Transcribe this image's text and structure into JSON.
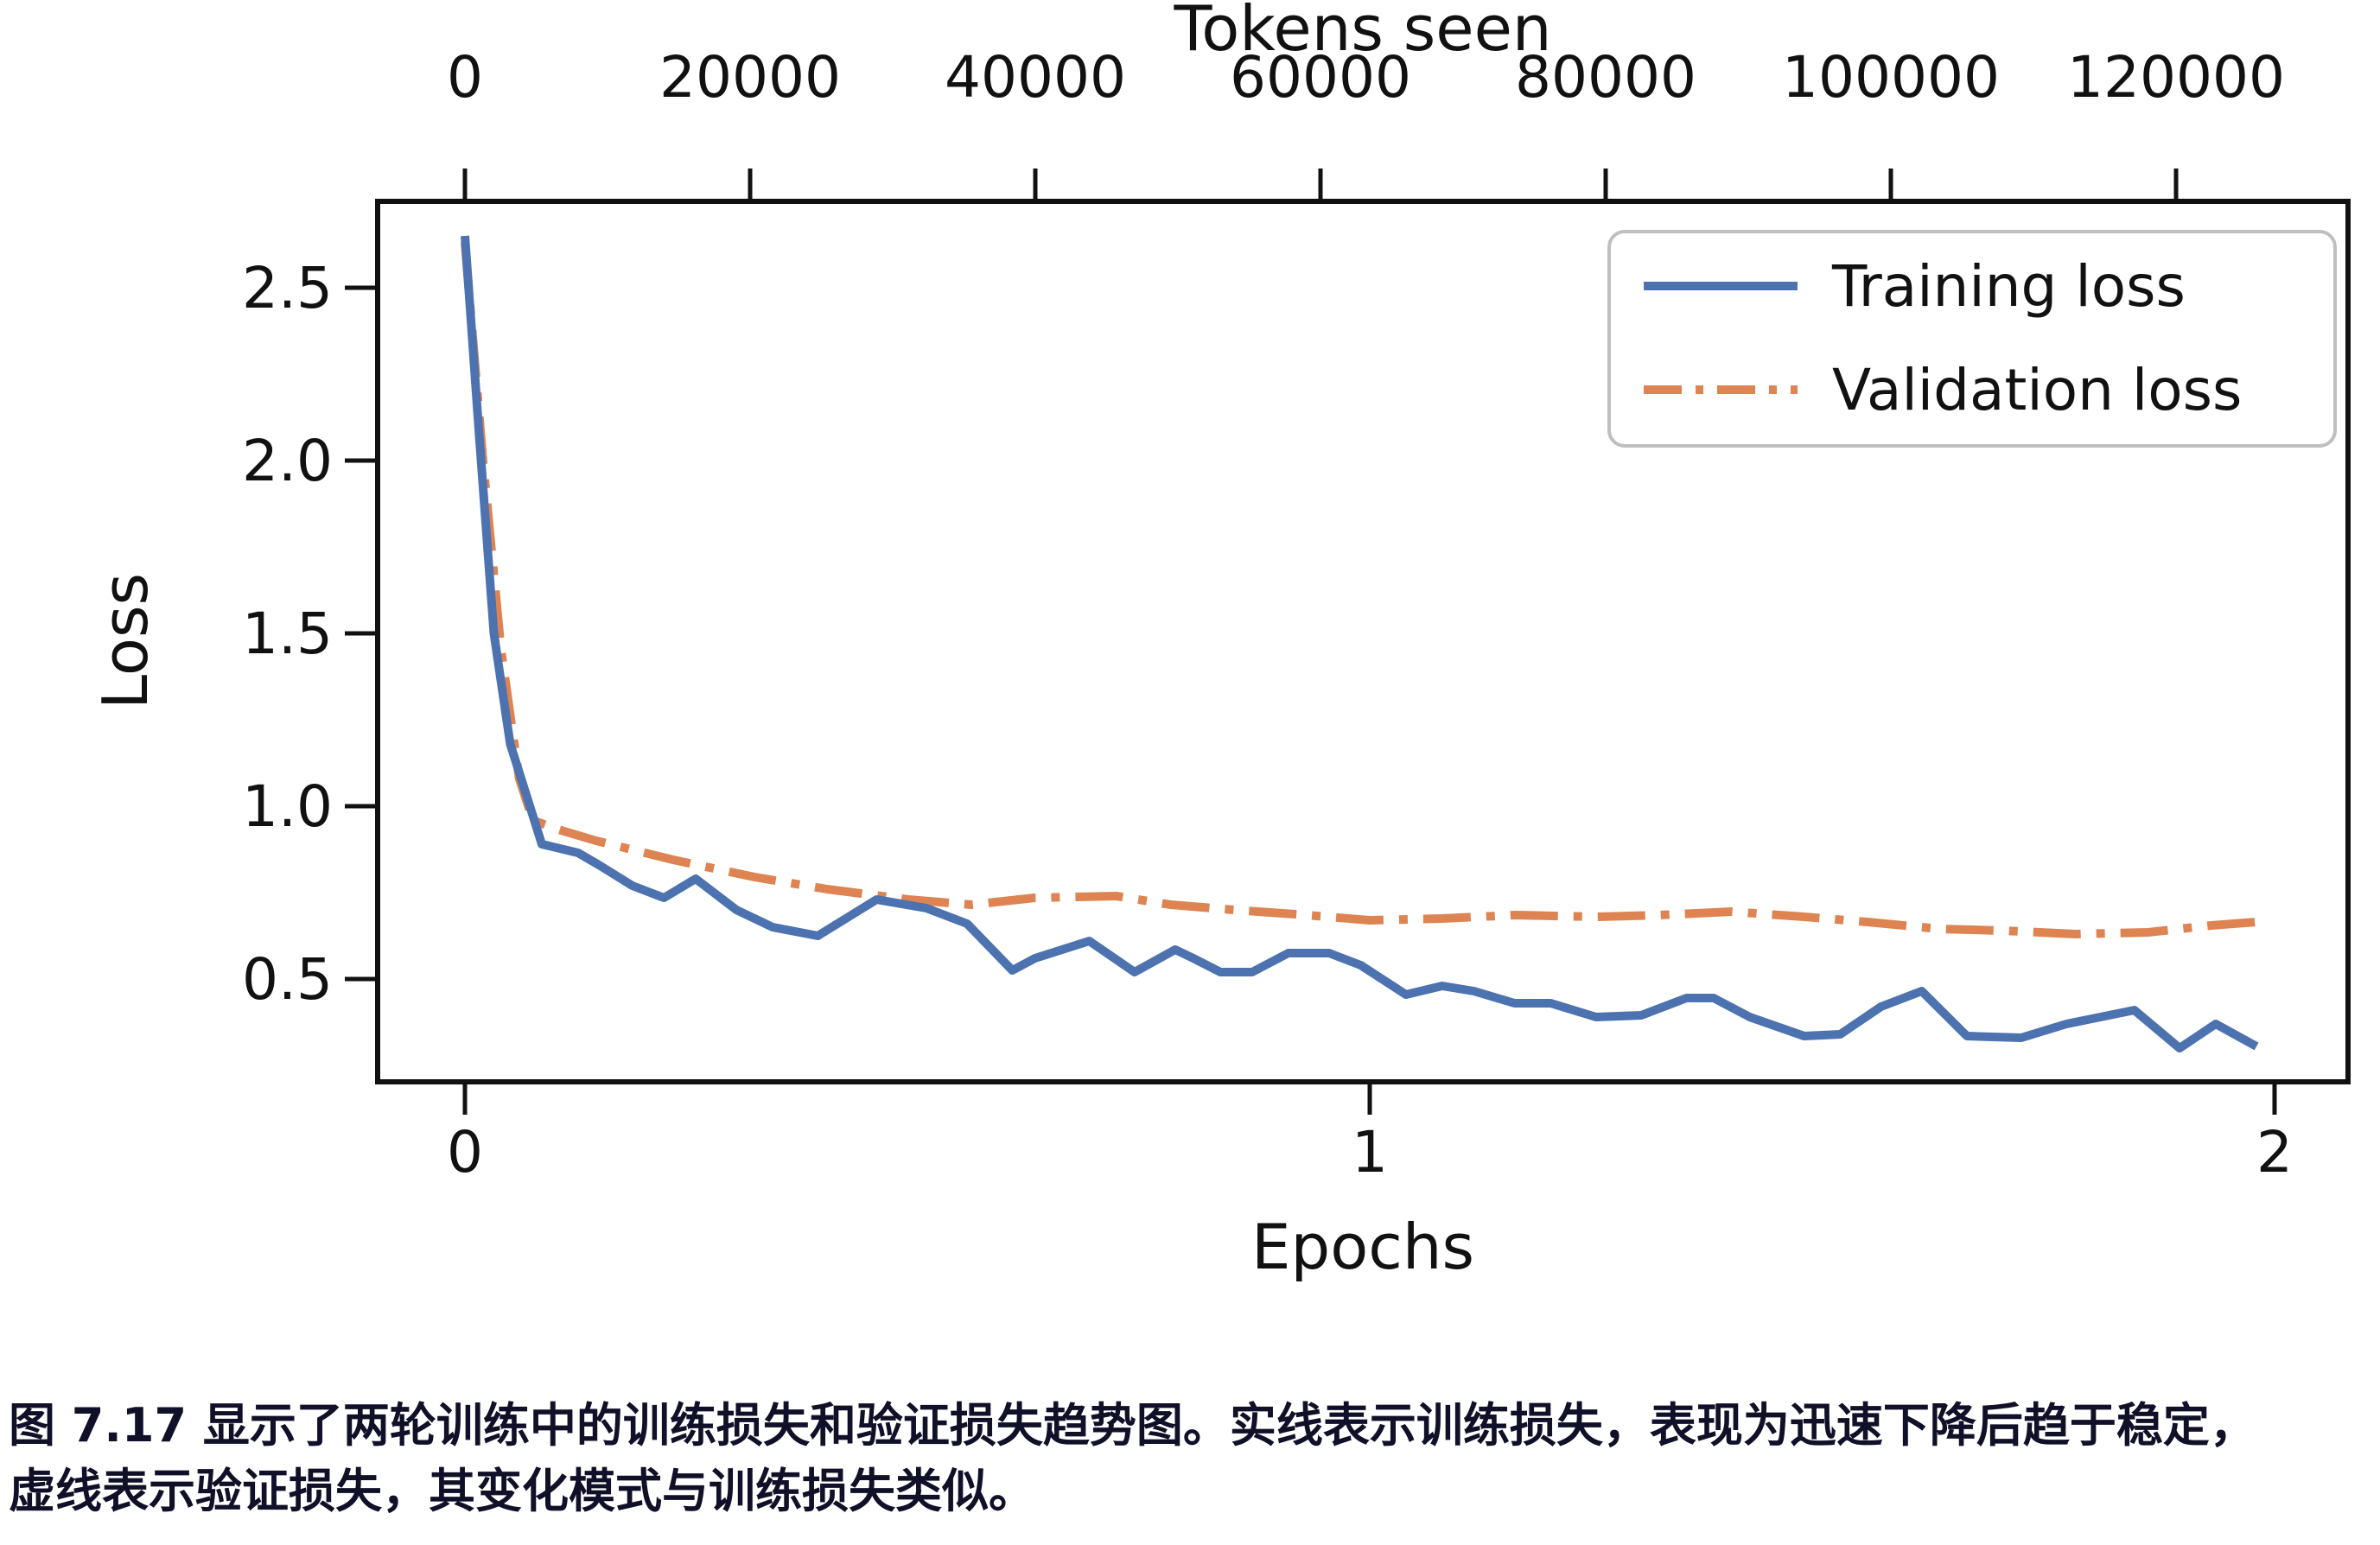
{
  "colors": {
    "training": "#4C72B0",
    "validation": "#DD8452",
    "axis": "#111111",
    "legend_border": "#bfbfbf",
    "caption_text": "#101028"
  },
  "chart_data": {
    "type": "line",
    "top_axis_label": "Tokens seen",
    "xlabel": "Epochs",
    "ylabel": "Loss",
    "x_bottom_ticks": [
      0,
      1,
      2
    ],
    "x_top_ticks": [
      0,
      20000,
      40000,
      60000,
      80000,
      100000,
      120000
    ],
    "y_ticks": [
      2.5,
      2.0,
      1.5,
      1.0,
      0.5
    ],
    "xlim_epochs": [
      -0.0965,
      2.081
    ],
    "ylim_loss": [
      0.2025,
      2.75
    ],
    "tokens_per_epoch": 63450,
    "grid": false,
    "legend_position": "upper right",
    "series": [
      {
        "name": "Training loss",
        "style": "solid",
        "color": "#4C72B0",
        "x": [
          0.0,
          0.015,
          0.032,
          0.05,
          0.085,
          0.125,
          0.148,
          0.185,
          0.22,
          0.255,
          0.3,
          0.34,
          0.39,
          0.455,
          0.51,
          0.555,
          0.605,
          0.63,
          0.69,
          0.74,
          0.785,
          0.805,
          0.835,
          0.87,
          0.91,
          0.955,
          0.99,
          1.04,
          1.08,
          1.115,
          1.16,
          1.2,
          1.25,
          1.3,
          1.35,
          1.38,
          1.42,
          1.48,
          1.52,
          1.565,
          1.61,
          1.66,
          1.72,
          1.77,
          1.845,
          1.895,
          1.935,
          1.98
        ],
        "y": [
          2.65,
          2.1,
          1.5,
          1.18,
          0.89,
          0.865,
          0.83,
          0.77,
          0.735,
          0.79,
          0.7,
          0.65,
          0.625,
          0.73,
          0.705,
          0.66,
          0.525,
          0.56,
          0.61,
          0.52,
          0.585,
          0.56,
          0.52,
          0.52,
          0.575,
          0.575,
          0.54,
          0.455,
          0.48,
          0.465,
          0.43,
          0.43,
          0.39,
          0.395,
          0.445,
          0.445,
          0.39,
          0.335,
          0.34,
          0.42,
          0.465,
          0.335,
          0.33,
          0.37,
          0.41,
          0.3,
          0.37,
          0.305
        ]
      },
      {
        "name": "Validation loss",
        "style": "dashdot",
        "color": "#DD8452",
        "x": [
          0.0,
          0.02,
          0.04,
          0.06,
          0.075,
          0.1,
          0.145,
          0.23,
          0.32,
          0.4,
          0.49,
          0.56,
          0.63,
          0.72,
          0.78,
          0.85,
          0.93,
          1.0,
          1.08,
          1.16,
          1.25,
          1.32,
          1.4,
          1.48,
          1.55,
          1.63,
          1.7,
          1.78,
          1.86,
          1.93,
          1.98
        ],
        "y": [
          2.63,
          2.0,
          1.45,
          1.08,
          0.96,
          0.935,
          0.9,
          0.845,
          0.795,
          0.76,
          0.73,
          0.715,
          0.735,
          0.74,
          0.715,
          0.7,
          0.685,
          0.67,
          0.675,
          0.685,
          0.68,
          0.685,
          0.695,
          0.68,
          0.665,
          0.645,
          0.64,
          0.63,
          0.635,
          0.655,
          0.665
        ]
      }
    ]
  },
  "legend": {
    "items": [
      "Training loss",
      "Validation loss"
    ]
  },
  "caption": {
    "prefix": "图 7.17",
    "line1": " 显示了两轮训练中的训练损失和验证损失趋势图。实线表示训练损失，表现为迅速下降后趋于稳定，",
    "line2": "虚线表示验证损失，其变化模式与训练损失类似。"
  }
}
